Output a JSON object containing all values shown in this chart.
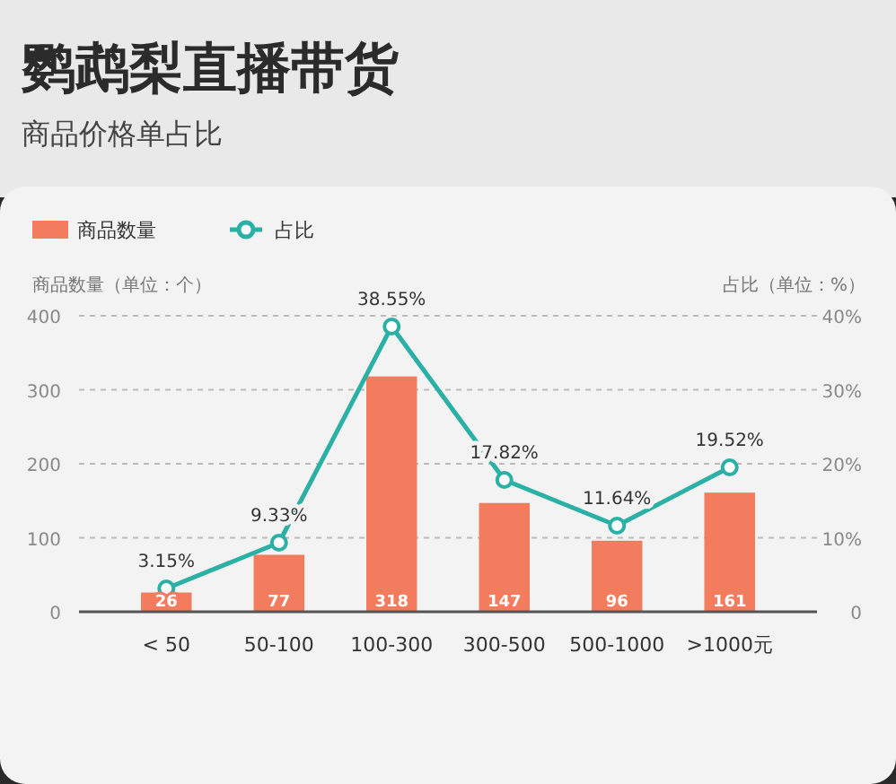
{
  "chart_data": {
    "type": "bar",
    "title": "鹦鹉梨直播带货",
    "subtitle": "商品价格单占比",
    "ylabel": "商品数量（单位：个）",
    "y2label": "占比（单位：%）",
    "categories": [
      "< 50",
      "50-100",
      "100-300",
      "300-500",
      "500-1000",
      ">1000元"
    ],
    "series": [
      {
        "name": "商品数量",
        "color": "#f47c5e",
        "values": [
          26,
          77,
          318,
          147,
          96,
          161
        ],
        "data_labels": true
      },
      {
        "name": "占比",
        "type": "line",
        "axis": "y2",
        "color": "#2bb0a6",
        "marker": "circle",
        "values": [
          3.15,
          9.33,
          38.55,
          17.82,
          11.64,
          19.52
        ],
        "value_labels": [
          "3.15%",
          "9.33%",
          "38.55%",
          "17.82%",
          "11.64%",
          "19.52%"
        ]
      }
    ],
    "ylim": [
      0,
      400
    ],
    "yticks": [
      0,
      100,
      200,
      300,
      400
    ],
    "y2lim": [
      0,
      40
    ],
    "y2ticks": [
      {
        "value": 0,
        "label": "0"
      },
      {
        "value": 10,
        "label": "10%"
      },
      {
        "value": 20,
        "label": "20%"
      },
      {
        "value": 30,
        "label": "30%"
      },
      {
        "value": 40,
        "label": "40%"
      }
    ],
    "grid": "y",
    "legend": "top left"
  }
}
